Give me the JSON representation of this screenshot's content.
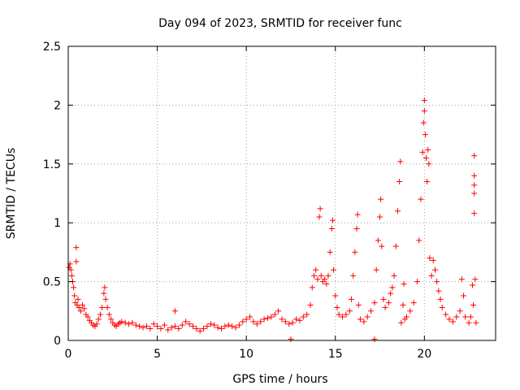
{
  "chart_data": {
    "type": "scatter",
    "title": "Day 094 of 2023, SRMTID for receiver func",
    "xlabel": "GPS time / hours",
    "ylabel": "SRMTID / TECUs",
    "xlim": [
      0,
      24
    ],
    "ylim": [
      0,
      2.5
    ],
    "xticks": [
      0,
      5,
      10,
      15,
      20
    ],
    "xtick_labels": [
      "0",
      "5",
      "10",
      "15",
      "20"
    ],
    "yticks": [
      0,
      0.5,
      1,
      1.5,
      2,
      2.5
    ],
    "ytick_labels": [
      "0",
      "0.5",
      "1",
      "1.5",
      "2",
      "2.5"
    ],
    "grid": true,
    "marker": "plus",
    "color": "#ff0000",
    "series": [
      {
        "name": "SRMTID",
        "points": [
          [
            0.05,
            0.62
          ],
          [
            0.1,
            0.65
          ],
          [
            0.15,
            0.6
          ],
          [
            0.2,
            0.55
          ],
          [
            0.25,
            0.5
          ],
          [
            0.3,
            0.45
          ],
          [
            0.35,
            0.38
          ],
          [
            0.4,
            0.32
          ],
          [
            0.45,
            0.79
          ],
          [
            0.45,
            0.67
          ],
          [
            0.5,
            0.3
          ],
          [
            0.55,
            0.35
          ],
          [
            0.6,
            0.28
          ],
          [
            0.7,
            0.25
          ],
          [
            0.8,
            0.3
          ],
          [
            0.9,
            0.27
          ],
          [
            1.0,
            0.22
          ],
          [
            1.1,
            0.2
          ],
          [
            1.2,
            0.17
          ],
          [
            1.3,
            0.15
          ],
          [
            1.4,
            0.13
          ],
          [
            1.5,
            0.12
          ],
          [
            1.6,
            0.14
          ],
          [
            1.7,
            0.18
          ],
          [
            1.8,
            0.22
          ],
          [
            1.9,
            0.28
          ],
          [
            2.0,
            0.4
          ],
          [
            2.05,
            0.45
          ],
          [
            2.1,
            0.35
          ],
          [
            2.2,
            0.28
          ],
          [
            2.3,
            0.22
          ],
          [
            2.4,
            0.18
          ],
          [
            2.5,
            0.15
          ],
          [
            2.6,
            0.13
          ],
          [
            2.7,
            0.12
          ],
          [
            2.8,
            0.14
          ],
          [
            2.9,
            0.15
          ],
          [
            3.0,
            0.16
          ],
          [
            3.2,
            0.15
          ],
          [
            3.4,
            0.14
          ],
          [
            3.6,
            0.15
          ],
          [
            3.8,
            0.13
          ],
          [
            4.0,
            0.12
          ],
          [
            4.2,
            0.11
          ],
          [
            4.4,
            0.12
          ],
          [
            4.6,
            0.1
          ],
          [
            4.8,
            0.14
          ],
          [
            5.0,
            0.12
          ],
          [
            5.2,
            0.1
          ],
          [
            5.4,
            0.13
          ],
          [
            5.6,
            0.09
          ],
          [
            5.8,
            0.11
          ],
          [
            6.0,
            0.25
          ],
          [
            6.0,
            0.12
          ],
          [
            6.2,
            0.1
          ],
          [
            6.4,
            0.13
          ],
          [
            6.6,
            0.16
          ],
          [
            6.8,
            0.14
          ],
          [
            7.0,
            0.12
          ],
          [
            7.2,
            0.1
          ],
          [
            7.4,
            0.08
          ],
          [
            7.6,
            0.1
          ],
          [
            7.8,
            0.12
          ],
          [
            8.0,
            0.14
          ],
          [
            8.2,
            0.13
          ],
          [
            8.4,
            0.11
          ],
          [
            8.6,
            0.1
          ],
          [
            8.8,
            0.12
          ],
          [
            9.0,
            0.13
          ],
          [
            9.2,
            0.12
          ],
          [
            9.4,
            0.11
          ],
          [
            9.6,
            0.13
          ],
          [
            9.8,
            0.16
          ],
          [
            10.0,
            0.18
          ],
          [
            10.2,
            0.2
          ],
          [
            10.4,
            0.16
          ],
          [
            10.6,
            0.14
          ],
          [
            10.8,
            0.16
          ],
          [
            11.0,
            0.18
          ],
          [
            11.2,
            0.19
          ],
          [
            11.4,
            0.2
          ],
          [
            11.6,
            0.22
          ],
          [
            11.8,
            0.25
          ],
          [
            12.0,
            0.18
          ],
          [
            12.2,
            0.16
          ],
          [
            12.4,
            0.14
          ],
          [
            12.5,
            0.01
          ],
          [
            12.6,
            0.15
          ],
          [
            12.8,
            0.18
          ],
          [
            13.0,
            0.17
          ],
          [
            13.2,
            0.2
          ],
          [
            13.4,
            0.22
          ],
          [
            13.6,
            0.3
          ],
          [
            13.7,
            0.45
          ],
          [
            13.8,
            0.55
          ],
          [
            13.9,
            0.6
          ],
          [
            14.0,
            0.52
          ],
          [
            14.1,
            1.05
          ],
          [
            14.15,
            1.12
          ],
          [
            14.2,
            0.55
          ],
          [
            14.3,
            0.5
          ],
          [
            14.4,
            0.52
          ],
          [
            14.5,
            0.48
          ],
          [
            14.6,
            0.55
          ],
          [
            14.7,
            0.75
          ],
          [
            14.8,
            0.95
          ],
          [
            14.85,
            1.02
          ],
          [
            14.9,
            0.6
          ],
          [
            15.0,
            0.38
          ],
          [
            15.1,
            0.28
          ],
          [
            15.2,
            0.22
          ],
          [
            15.4,
            0.2
          ],
          [
            15.6,
            0.22
          ],
          [
            15.8,
            0.25
          ],
          [
            15.9,
            0.35
          ],
          [
            16.0,
            0.55
          ],
          [
            16.1,
            0.75
          ],
          [
            16.2,
            0.95
          ],
          [
            16.25,
            1.07
          ],
          [
            16.3,
            0.3
          ],
          [
            16.4,
            0.18
          ],
          [
            16.6,
            0.16
          ],
          [
            16.8,
            0.2
          ],
          [
            17.0,
            0.25
          ],
          [
            17.2,
            0.32
          ],
          [
            17.2,
            0.01
          ],
          [
            17.3,
            0.6
          ],
          [
            17.4,
            0.85
          ],
          [
            17.5,
            1.05
          ],
          [
            17.55,
            1.2
          ],
          [
            17.6,
            0.8
          ],
          [
            17.7,
            0.35
          ],
          [
            17.8,
            0.28
          ],
          [
            18.0,
            0.32
          ],
          [
            18.1,
            0.4
          ],
          [
            18.2,
            0.45
          ],
          [
            18.3,
            0.55
          ],
          [
            18.4,
            0.8
          ],
          [
            18.5,
            1.1
          ],
          [
            18.6,
            1.35
          ],
          [
            18.65,
            1.52
          ],
          [
            18.7,
            0.15
          ],
          [
            18.8,
            0.3
          ],
          [
            18.85,
            0.48
          ],
          [
            18.9,
            0.18
          ],
          [
            19.0,
            0.2
          ],
          [
            19.2,
            0.25
          ],
          [
            19.4,
            0.32
          ],
          [
            19.6,
            0.5
          ],
          [
            19.7,
            0.85
          ],
          [
            19.8,
            1.2
          ],
          [
            19.9,
            1.6
          ],
          [
            19.95,
            1.85
          ],
          [
            20.0,
            2.04
          ],
          [
            20.0,
            1.95
          ],
          [
            20.05,
            1.75
          ],
          [
            20.1,
            1.55
          ],
          [
            20.15,
            1.35
          ],
          [
            20.2,
            1.62
          ],
          [
            20.25,
            1.5
          ],
          [
            20.3,
            0.7
          ],
          [
            20.4,
            0.55
          ],
          [
            20.5,
            0.68
          ],
          [
            20.6,
            0.6
          ],
          [
            20.7,
            0.5
          ],
          [
            20.8,
            0.42
          ],
          [
            20.9,
            0.35
          ],
          [
            21.0,
            0.28
          ],
          [
            21.2,
            0.22
          ],
          [
            21.4,
            0.18
          ],
          [
            21.6,
            0.16
          ],
          [
            21.8,
            0.2
          ],
          [
            22.0,
            0.25
          ],
          [
            22.1,
            0.52
          ],
          [
            22.2,
            0.38
          ],
          [
            22.3,
            0.2
          ],
          [
            22.5,
            0.15
          ],
          [
            22.6,
            0.2
          ],
          [
            22.7,
            0.47
          ],
          [
            22.75,
            0.3
          ],
          [
            22.8,
            1.57
          ],
          [
            22.8,
            1.4
          ],
          [
            22.8,
            1.32
          ],
          [
            22.8,
            1.25
          ],
          [
            22.8,
            1.08
          ],
          [
            22.85,
            0.52
          ],
          [
            22.9,
            0.15
          ]
        ]
      }
    ]
  }
}
